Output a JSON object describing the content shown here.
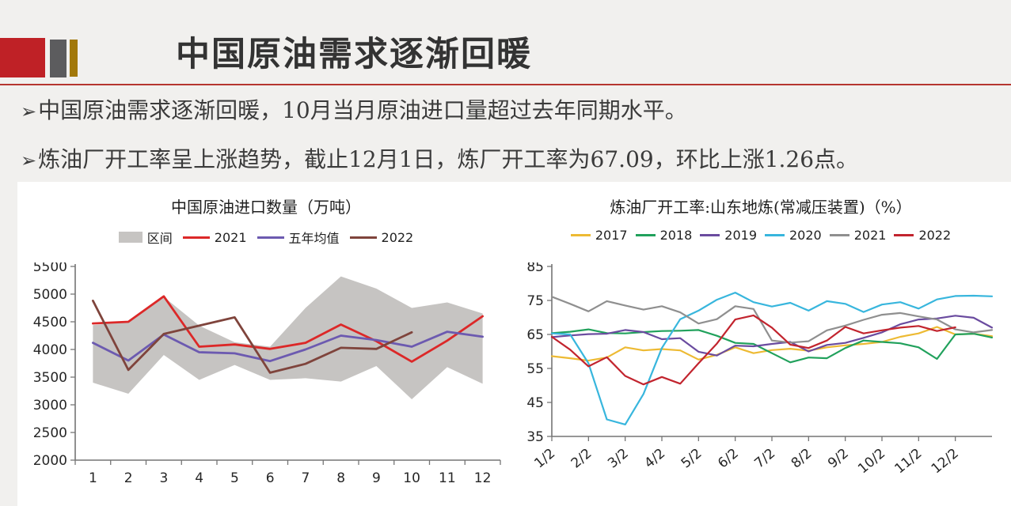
{
  "slide": {
    "title": "中国原油需求逐渐回暖",
    "accent_colors": {
      "logo_red": "#bf2126",
      "logo_gray": "#5c5c5e",
      "logo_gold": "#a2780a",
      "rule_red": "#b5352f"
    }
  },
  "bullets": [
    {
      "marker": "➢",
      "text": "中国原油需求逐渐回暖，10月当月原油进口量超过去年同期水平。"
    },
    {
      "marker": "➢",
      "text": "炼油厂开工率呈上涨趋势，截止12月1日，炼厂开工率为67.09，环比上涨1.26点。"
    }
  ],
  "chart_data": [
    {
      "type": "line+band",
      "title": "中国原油进口数量（万吨）",
      "xlabel": "",
      "ylabel": "",
      "categories": [
        "1",
        "2",
        "3",
        "4",
        "5",
        "6",
        "7",
        "8",
        "9",
        "10",
        "11",
        "12"
      ],
      "ylim": [
        2000,
        5500
      ],
      "ytick_step": 500,
      "grid": false,
      "legend_position": "top",
      "band": {
        "name": "区间",
        "color": "#c6c4c2",
        "high": [
          4440,
          4500,
          4950,
          4430,
          4130,
          4050,
          4750,
          5320,
          5100,
          4750,
          4850,
          4650
        ],
        "low": [
          3400,
          3200,
          3900,
          3450,
          3720,
          3450,
          3480,
          3420,
          3700,
          3100,
          3680,
          3380
        ]
      },
      "series": [
        {
          "name": "2021",
          "color": "#dc2828",
          "values": [
            4470,
            4500,
            4960,
            4050,
            4090,
            4010,
            4120,
            4450,
            4150,
            3780,
            4160,
            4600
          ]
        },
        {
          "name": "五年均值",
          "color": "#6c5ab0",
          "values": [
            4120,
            3800,
            4270,
            3950,
            3930,
            3790,
            4000,
            4250,
            4170,
            4050,
            4320,
            4230
          ]
        },
        {
          "name": "2022",
          "color": "#7f443c",
          "values": [
            4880,
            3630,
            4280,
            4430,
            4580,
            3580,
            3740,
            4030,
            4010,
            4310,
            null,
            null
          ]
        }
      ]
    },
    {
      "type": "line",
      "title": "炼油厂开工率:山东地炼(常减压装置)（%）",
      "xlabel": "",
      "ylabel": "",
      "x_labels": [
        "1/2",
        "2/2",
        "3/2",
        "4/2",
        "5/2",
        "6/2",
        "7/2",
        "8/2",
        "9/2",
        "10/2",
        "11/2",
        "12/2"
      ],
      "label_every": 2,
      "ylim": [
        35,
        85
      ],
      "ytick_step": 10,
      "grid": false,
      "legend_position": "top",
      "x_label_rotation": -40,
      "series": [
        {
          "name": "2017",
          "color": "#edba33",
          "values": [
            58.6,
            58,
            57.3,
            58.2,
            61.2,
            60.3,
            60.7,
            60.3,
            57.6,
            59,
            61.2,
            59.5,
            60.4,
            60.8,
            60.2,
            61.2,
            61.8,
            62.2,
            62.8,
            64.3,
            65.3,
            67.2,
            65,
            65.2,
            64.5
          ]
        },
        {
          "name": "2018",
          "color": "#21a15c",
          "values": [
            65.4,
            65.8,
            66.5,
            65.4,
            65.3,
            65.7,
            66,
            66.1,
            66.3,
            64.6,
            62.5,
            62.2,
            59.5,
            56.8,
            58.2,
            58,
            61,
            63.2,
            62.8,
            62.4,
            61.2,
            57.8,
            65,
            65.2,
            64.1
          ]
        },
        {
          "name": "2019",
          "color": "#6a4b9f",
          "values": [
            64.2,
            64.7,
            65.1,
            65.2,
            66.3,
            65.7,
            63.6,
            63.9,
            59.9,
            58.8,
            61.7,
            61.5,
            62.2,
            62.8,
            60,
            61.9,
            62.5,
            64,
            65.6,
            68,
            69.4,
            69.7,
            70.5,
            69.9,
            67
          ]
        },
        {
          "name": "2020",
          "color": "#38b6dd",
          "values": [
            65.3,
            65,
            56.5,
            40,
            38.5,
            47.5,
            61,
            69.5,
            72,
            75.2,
            77.3,
            74.5,
            73.2,
            74.3,
            72,
            74.8,
            74,
            71.6,
            73.8,
            74.5,
            72.6,
            75.3,
            76.3,
            76.4,
            76.2
          ]
        },
        {
          "name": "2021",
          "color": "#8f8f8f",
          "values": [
            76.1,
            74,
            71.8,
            74.8,
            73.5,
            72.3,
            73.3,
            71.5,
            68.2,
            69.5,
            73.3,
            72.5,
            63.2,
            62.6,
            63,
            66.2,
            67.6,
            69.3,
            70.8,
            71.3,
            70.3,
            69.4,
            66.5,
            65.6,
            66.3
          ]
        },
        {
          "name": "2022",
          "color": "#c2242e",
          "values": [
            64.3,
            60.5,
            55.6,
            58.3,
            52.8,
            50.3,
            52.5,
            50.5,
            56.5,
            62.3,
            69.4,
            70.6,
            67,
            62,
            61,
            63.2,
            67.2,
            65.3,
            66.2,
            67,
            67.5,
            66,
            67.1,
            null,
            null
          ]
        }
      ]
    }
  ]
}
